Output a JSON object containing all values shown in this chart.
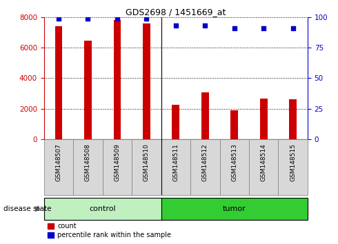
{
  "title": "GDS2698 / 1451669_at",
  "samples": [
    "GSM148507",
    "GSM148508",
    "GSM148509",
    "GSM148510",
    "GSM148511",
    "GSM148512",
    "GSM148513",
    "GSM148514",
    "GSM148515"
  ],
  "bar_values": [
    7400,
    6450,
    7800,
    7600,
    2250,
    3050,
    1900,
    2650,
    2600
  ],
  "percentile_values": [
    99,
    99,
    99,
    99,
    93,
    93,
    91,
    91,
    91
  ],
  "n_control": 4,
  "n_tumor": 5,
  "bar_color": "#cc0000",
  "dot_color": "#0000cc",
  "ylim_left": [
    0,
    8000
  ],
  "ylim_right": [
    0,
    100
  ],
  "yticks_left": [
    0,
    2000,
    4000,
    6000,
    8000
  ],
  "yticks_right": [
    0,
    25,
    50,
    75,
    100
  ],
  "control_color": "#c0f0c0",
  "tumor_color": "#33cc33",
  "label_color_left": "#cc0000",
  "label_color_right": "#0000cc",
  "legend_count": "count",
  "legend_percentile": "percentile rank within the sample",
  "disease_state_label": "disease state",
  "bar_width": 0.25,
  "dot_size": 20,
  "bg_color": "white",
  "xticklabel_box_color": "#d8d8d8",
  "xticklabel_box_edgecolor": "#888888"
}
